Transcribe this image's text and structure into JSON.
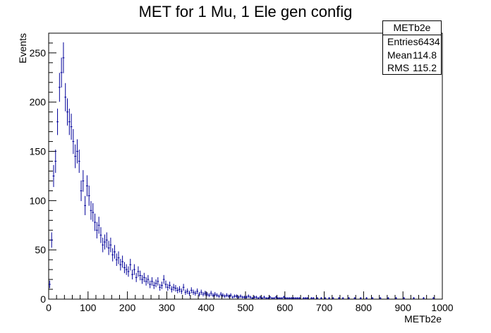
{
  "chart_data": {
    "type": "histogram",
    "title": "MET for 1 Mu, 1 Ele gen config",
    "xlabel": "METb2e",
    "ylabel": "Events",
    "xlim": [
      0,
      1000
    ],
    "ylim": [
      0,
      270
    ],
    "x_ticks": [
      0,
      100,
      200,
      300,
      400,
      500,
      600,
      700,
      800,
      900,
      1000
    ],
    "y_ticks": [
      0,
      50,
      100,
      150,
      200,
      250
    ],
    "bin_width": 5,
    "color": "#000099",
    "stats": {
      "name": "METb2e",
      "rows": [
        {
          "label": "Entries",
          "value": "6434"
        },
        {
          "label": "Mean",
          "value": "114.8"
        },
        {
          "label": "RMS",
          "value": "115.2"
        }
      ]
    },
    "points": [
      [
        2.5,
        15
      ],
      [
        7.5,
        60
      ],
      [
        12.5,
        125
      ],
      [
        17.5,
        140
      ],
      [
        22.5,
        180
      ],
      [
        27.5,
        215
      ],
      [
        32.5,
        230
      ],
      [
        37.5,
        245
      ],
      [
        42.5,
        205
      ],
      [
        47.5,
        190
      ],
      [
        52.5,
        180
      ],
      [
        57.5,
        175
      ],
      [
        62.5,
        160
      ],
      [
        67.5,
        145
      ],
      [
        72.5,
        150
      ],
      [
        77.5,
        140
      ],
      [
        82.5,
        110
      ],
      [
        87.5,
        120
      ],
      [
        92.5,
        95
      ],
      [
        97.5,
        115
      ],
      [
        102.5,
        105
      ],
      [
        107.5,
        90
      ],
      [
        112.5,
        88
      ],
      [
        117.5,
        78
      ],
      [
        122.5,
        70
      ],
      [
        127.5,
        75
      ],
      [
        132.5,
        65
      ],
      [
        137.5,
        55
      ],
      [
        142.5,
        58
      ],
      [
        147.5,
        60
      ],
      [
        152.5,
        52
      ],
      [
        157.5,
        55
      ],
      [
        162.5,
        45
      ],
      [
        167.5,
        48
      ],
      [
        172.5,
        40
      ],
      [
        177.5,
        42
      ],
      [
        182.5,
        35
      ],
      [
        187.5,
        38
      ],
      [
        192.5,
        32
      ],
      [
        197.5,
        30
      ],
      [
        202.5,
        28
      ],
      [
        207.5,
        35
      ],
      [
        212.5,
        25
      ],
      [
        217.5,
        30
      ],
      [
        222.5,
        22
      ],
      [
        227.5,
        28
      ],
      [
        232.5,
        24
      ],
      [
        237.5,
        20
      ],
      [
        242.5,
        22
      ],
      [
        247.5,
        18
      ],
      [
        252.5,
        20
      ],
      [
        257.5,
        15
      ],
      [
        262.5,
        18
      ],
      [
        267.5,
        14
      ],
      [
        272.5,
        16
      ],
      [
        277.5,
        18
      ],
      [
        282.5,
        12
      ],
      [
        287.5,
        14
      ],
      [
        292.5,
        20
      ],
      [
        297.5,
        15
      ],
      [
        302.5,
        12
      ],
      [
        307.5,
        14
      ],
      [
        312.5,
        10
      ],
      [
        317.5,
        12
      ],
      [
        322.5,
        11
      ],
      [
        327.5,
        9
      ],
      [
        332.5,
        10
      ],
      [
        337.5,
        8
      ],
      [
        342.5,
        12
      ],
      [
        347.5,
        7
      ],
      [
        352.5,
        8
      ],
      [
        357.5,
        6
      ],
      [
        362.5,
        9
      ],
      [
        367.5,
        7
      ],
      [
        372.5,
        6
      ],
      [
        377.5,
        8
      ],
      [
        382.5,
        5
      ],
      [
        387.5,
        7
      ],
      [
        392.5,
        5
      ],
      [
        397.5,
        6
      ],
      [
        402.5,
        5
      ],
      [
        407.5,
        4
      ],
      [
        412.5,
        6
      ],
      [
        417.5,
        4
      ],
      [
        422.5,
        5
      ],
      [
        427.5,
        4
      ],
      [
        432.5,
        3
      ],
      [
        437.5,
        5
      ],
      [
        442.5,
        4
      ],
      [
        447.5,
        3
      ],
      [
        452.5,
        4
      ],
      [
        457.5,
        3
      ],
      [
        462.5,
        4
      ],
      [
        467.5,
        2
      ],
      [
        472.5,
        3
      ],
      [
        477.5,
        3
      ],
      [
        482.5,
        2
      ],
      [
        487.5,
        3
      ],
      [
        492.5,
        2
      ],
      [
        497.5,
        2
      ],
      [
        502.5,
        2
      ],
      [
        507.5,
        3
      ],
      [
        512.5,
        2
      ],
      [
        517.5,
        1
      ],
      [
        522.5,
        2
      ],
      [
        527.5,
        2
      ],
      [
        532.5,
        1
      ],
      [
        537.5,
        2
      ],
      [
        542.5,
        1
      ],
      [
        547.5,
        2
      ],
      [
        552.5,
        1
      ],
      [
        557.5,
        1
      ],
      [
        562.5,
        2
      ],
      [
        567.5,
        1
      ],
      [
        572.5,
        1
      ],
      [
        577.5,
        2
      ],
      [
        582.5,
        1
      ],
      [
        587.5,
        1
      ],
      [
        592.5,
        1
      ],
      [
        597.5,
        2
      ],
      [
        602.5,
        1
      ],
      [
        607.5,
        1
      ],
      [
        612.5,
        1
      ],
      [
        617.5,
        1
      ],
      [
        622.5,
        1
      ],
      [
        627.5,
        1
      ],
      [
        632.5,
        1
      ],
      [
        637.5,
        1
      ],
      [
        647.5,
        1
      ],
      [
        652.5,
        1
      ],
      [
        657.5,
        1
      ],
      [
        667.5,
        1
      ],
      [
        672.5,
        1
      ],
      [
        682.5,
        1
      ],
      [
        692.5,
        1
      ],
      [
        702.5,
        1
      ],
      [
        712.5,
        1
      ],
      [
        722.5,
        1
      ],
      [
        737.5,
        1
      ],
      [
        747.5,
        1
      ],
      [
        762.5,
        1
      ],
      [
        777.5,
        1
      ],
      [
        792.5,
        1
      ],
      [
        807.5,
        1
      ],
      [
        822.5,
        1
      ],
      [
        842.5,
        1
      ],
      [
        862.5,
        1
      ],
      [
        882.5,
        1
      ],
      [
        902.5,
        1
      ],
      [
        927.5,
        1
      ],
      [
        952.5,
        1
      ],
      [
        977.5,
        1
      ]
    ]
  }
}
